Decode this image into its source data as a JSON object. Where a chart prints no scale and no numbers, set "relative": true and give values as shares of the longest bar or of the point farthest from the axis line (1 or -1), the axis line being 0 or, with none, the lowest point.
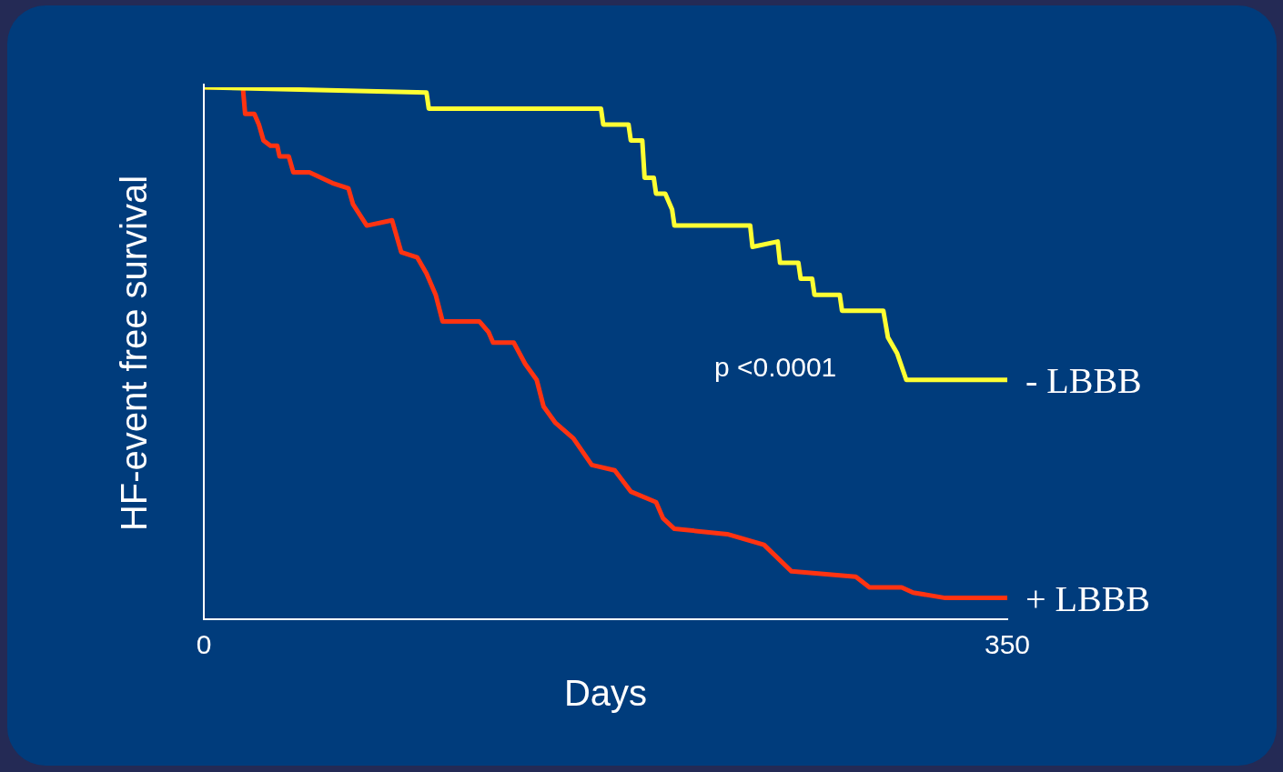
{
  "chart_data": {
    "type": "line",
    "xlabel": "Days",
    "ylabel": "HF-event free survival",
    "xlim": [
      0,
      350
    ],
    "xticks": [
      0,
      350
    ],
    "relative": true,
    "tick_labels": "x",
    "grid": false,
    "legend": false,
    "marker": "none",
    "line_style": "solid",
    "annotations": [
      "p <0.0001"
    ],
    "series": [
      {
        "name": "- LBBB",
        "color": "#ffff33",
        "x": [
          0,
          97,
          98,
          173,
          174,
          185,
          186,
          191,
          192,
          196,
          197,
          201,
          204,
          205,
          238,
          239,
          250,
          251,
          259,
          260,
          265,
          266,
          277,
          278,
          296,
          298,
          302,
          306,
          350
        ],
        "values": [
          1.0,
          0.99,
          0.96,
          0.96,
          0.93,
          0.93,
          0.9,
          0.9,
          0.83,
          0.83,
          0.8,
          0.8,
          0.77,
          0.74,
          0.74,
          0.7,
          0.71,
          0.67,
          0.67,
          0.64,
          0.64,
          0.61,
          0.61,
          0.58,
          0.58,
          0.53,
          0.5,
          0.45,
          0.45
        ]
      },
      {
        "name": "+ LBBB",
        "color": "#ff3311",
        "x": [
          0,
          17,
          18,
          22,
          24,
          26,
          29,
          30,
          32,
          33,
          37,
          39,
          46,
          56,
          63,
          65,
          71,
          82,
          86,
          93,
          97,
          101,
          104,
          120,
          124,
          126,
          135,
          140,
          145,
          148,
          153,
          161,
          169,
          179,
          186,
          197,
          200,
          205,
          228,
          244,
          256,
          284,
          290,
          304,
          309,
          323,
          350
        ],
        "values": [
          1.0,
          1.0,
          0.95,
          0.95,
          0.93,
          0.9,
          0.89,
          0.89,
          0.89,
          0.87,
          0.87,
          0.84,
          0.84,
          0.82,
          0.81,
          0.78,
          0.74,
          0.75,
          0.69,
          0.68,
          0.65,
          0.61,
          0.56,
          0.56,
          0.54,
          0.52,
          0.52,
          0.48,
          0.45,
          0.4,
          0.37,
          0.34,
          0.29,
          0.28,
          0.24,
          0.22,
          0.19,
          0.17,
          0.16,
          0.14,
          0.09,
          0.08,
          0.06,
          0.06,
          0.05,
          0.04,
          0.04
        ]
      }
    ]
  }
}
